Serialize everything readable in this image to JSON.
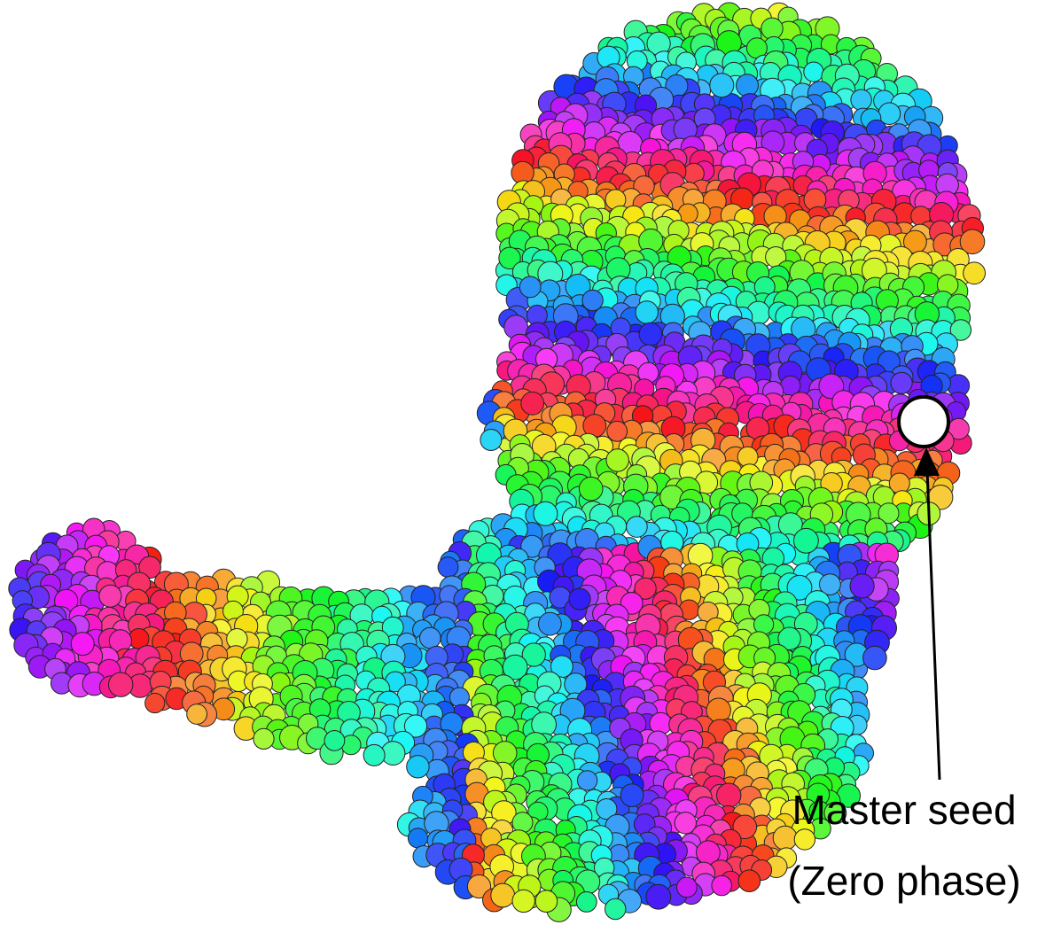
{
  "annotation": {
    "line1": "Master seed",
    "line2": "(Zero phase)"
  }
}
